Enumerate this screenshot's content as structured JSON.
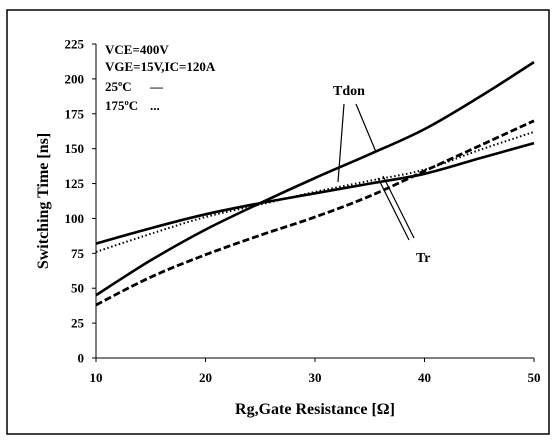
{
  "chart_data": {
    "type": "line",
    "xlabel": "Rg,Gate Resistance [Ω]",
    "ylabel": "Switching Time [ns]",
    "xlim": [
      10,
      50
    ],
    "ylim": [
      0,
      225
    ],
    "x_ticks": [
      "10",
      "20",
      "30",
      "40",
      "50"
    ],
    "y_ticks": [
      "0",
      "25",
      "50",
      "75",
      "100",
      "125",
      "150",
      "175",
      "200",
      "225"
    ],
    "grid": false,
    "conditions": [
      "VCE=400V",
      "VGE=15V,IC=120A"
    ],
    "legend": [
      {
        "label": "25ºC",
        "marker": "—"
      },
      {
        "label": "175ºC",
        "marker": "..."
      }
    ],
    "annotations": [
      "Tdon",
      "Tr"
    ],
    "series": [
      {
        "x": [
          10,
          15,
          20,
          25,
          30,
          35,
          40,
          45,
          50
        ],
        "y": [
          45,
          70,
          92,
          111,
          129,
          146,
          164,
          187,
          212
        ],
        "style": "solid"
      },
      {
        "x": [
          10,
          15,
          20,
          25,
          30,
          35,
          40,
          45,
          50
        ],
        "y": [
          38,
          58,
          74,
          88,
          101,
          116,
          134,
          152,
          170
        ],
        "style": "dashed"
      },
      {
        "x": [
          10,
          15,
          20,
          25,
          30,
          35,
          40,
          45,
          50
        ],
        "y": [
          82,
          93,
          103,
          111,
          118,
          125,
          132,
          143,
          154
        ],
        "style": "solid"
      },
      {
        "x": [
          10,
          15,
          20,
          25,
          30,
          35,
          40,
          45,
          50
        ],
        "y": [
          76,
          89,
          101,
          110,
          119,
          127,
          135,
          149,
          162
        ],
        "style": "dotted"
      }
    ]
  }
}
